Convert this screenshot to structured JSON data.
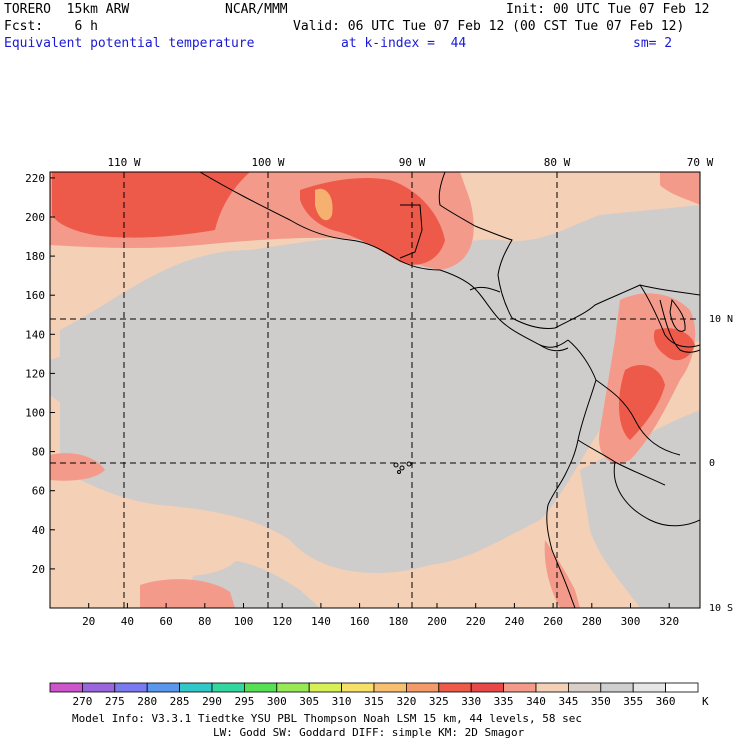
{
  "header": {
    "model": "TORERO  15km ARW",
    "org": "NCAR/MMM",
    "init": "Init: 00 UTC Tue 07 Feb 12",
    "fcst": "Fcst:    6 h",
    "valid": "Valid: 06 UTC Tue 07 Feb 12 (00 CST Tue 07 Feb 12)",
    "field": "Equivalent potential temperature",
    "level": "at k-index =  44",
    "smooth": "sm= 2"
  },
  "axes": {
    "lon_labels": [
      "110 W",
      "100 W",
      "90 W",
      "80 W",
      "70 W"
    ],
    "lat_labels": [
      "10 N",
      "0",
      "10 S"
    ],
    "x_ticks": [
      "20",
      "40",
      "60",
      "80",
      "100",
      "120",
      "140",
      "160",
      "180",
      "200",
      "220",
      "240",
      "260",
      "280",
      "300",
      "320"
    ],
    "y_ticks": [
      "20",
      "40",
      "60",
      "80",
      "100",
      "120",
      "140",
      "160",
      "180",
      "200",
      "220"
    ]
  },
  "colorbar": {
    "unit": "K",
    "labels": [
      "270",
      "275",
      "280",
      "285",
      "290",
      "295",
      "300",
      "305",
      "310",
      "315",
      "320",
      "325",
      "330",
      "335",
      "340",
      "345",
      "350",
      "355",
      "360"
    ],
    "colors": [
      "#cc55cc",
      "#9966dd",
      "#7a7af0",
      "#5a95ee",
      "#33c8c8",
      "#33d6a0",
      "#55e055",
      "#99e855",
      "#d8f055",
      "#f6e06a",
      "#f6c070",
      "#f49a6a",
      "#ee5a4a",
      "#e84848",
      "#f49a8a",
      "#f3d0b6",
      "#d9cfc8",
      "#cfcfcf",
      "#e6e6e6",
      "#ffffff"
    ]
  },
  "footer": {
    "line1": "Model Info: V3.3.1    Tiedtke YSU PBL  Thompson     Noah LSM  15 km,   44 levels,   58 sec",
    "line2": "LW: Godd SW: Goddard DIFF: simple KM: 2D Smagor"
  },
  "field_colors": {
    "background": "#f3d0b6",
    "cool": "#cfcccc",
    "warm": "#f49a8a",
    "hot": "#ee5a4a",
    "hottest": "#f6b070",
    "grid": "#000000"
  }
}
